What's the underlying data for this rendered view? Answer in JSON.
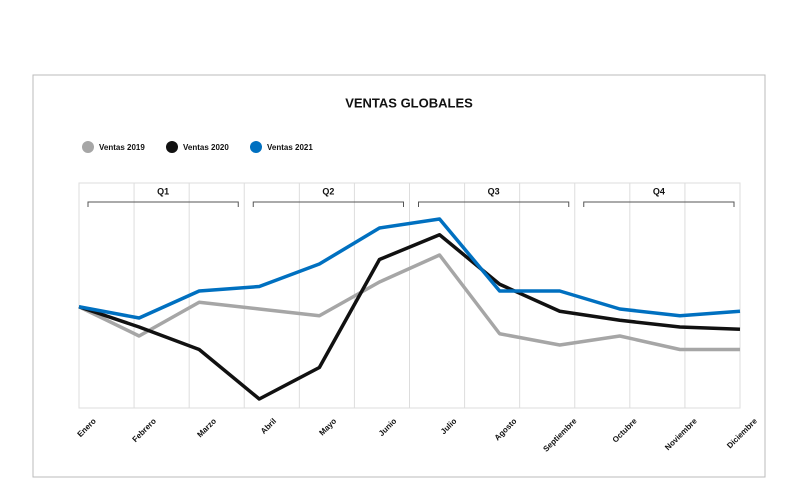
{
  "chart_data": {
    "type": "line",
    "title": "VENTAS GLOBALES",
    "categories": [
      "Enero",
      "Febrero",
      "Marzo",
      "Abril",
      "Mayo",
      "Junio",
      "Julio",
      "Agosto",
      "Septiembre",
      "Octubre",
      "Noviembre",
      "Diciembre"
    ],
    "quarters": [
      "Q1",
      "Q2",
      "Q3",
      "Q4"
    ],
    "series": [
      {
        "name": "Ventas 2019",
        "color": "#a6a6a6",
        "values": [
          45,
          32,
          47,
          44,
          41,
          56,
          68,
          33,
          28,
          32,
          26,
          26
        ]
      },
      {
        "name": "Ventas 2020",
        "color": "#111111",
        "values": [
          45,
          36,
          26,
          4,
          18,
          66,
          77,
          55,
          43,
          39,
          36,
          35
        ]
      },
      {
        "name": "Ventas 2021",
        "color": "#0070c0",
        "values": [
          45,
          40,
          52,
          54,
          64,
          80,
          84,
          52,
          52,
          44,
          41,
          43
        ]
      }
    ],
    "ylim": [
      0,
      100
    ],
    "grid": true
  }
}
